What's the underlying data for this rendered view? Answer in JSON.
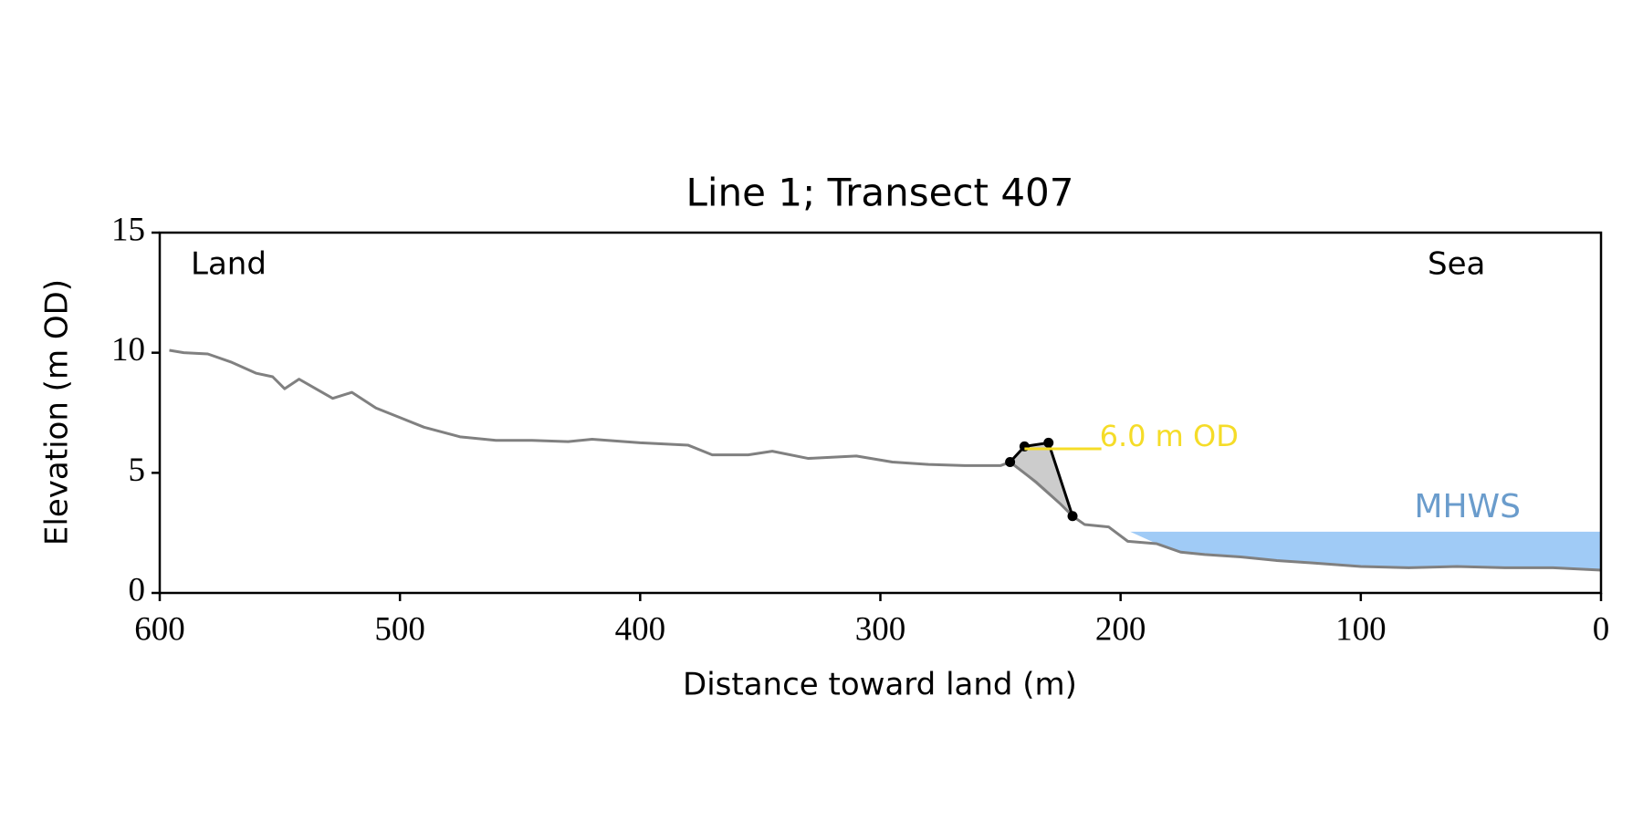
{
  "chart_data": {
    "type": "line",
    "title": "Line 1; Transect 407",
    "xlabel": "Distance toward land (m)",
    "ylabel": "Elevation (m OD)",
    "xlim": [
      600,
      0
    ],
    "ylim": [
      0,
      15
    ],
    "xticks": [
      600,
      500,
      400,
      300,
      200,
      100,
      0
    ],
    "yticks": [
      0,
      5,
      10,
      15
    ],
    "annotations": {
      "land": "Land",
      "sea": "Sea"
    },
    "series": [
      {
        "color": "#808080",
        "x": [
          596,
          590,
          580,
          570,
          560,
          553,
          548,
          542,
          535,
          528,
          520,
          510,
          500,
          490,
          475,
          460,
          445,
          430,
          420,
          400,
          380,
          370,
          355,
          345,
          330,
          310,
          295,
          280,
          265,
          250,
          246,
          235,
          225,
          220,
          215,
          205,
          197,
          185,
          175,
          165,
          150,
          135,
          120,
          100,
          80,
          60,
          40,
          20,
          0
        ],
        "values": [
          10.1,
          10.0,
          9.95,
          9.6,
          9.15,
          9.0,
          8.5,
          8.9,
          8.5,
          8.1,
          8.35,
          7.7,
          7.3,
          6.9,
          6.5,
          6.35,
          6.35,
          6.3,
          6.4,
          6.25,
          6.15,
          5.75,
          5.75,
          5.9,
          5.6,
          5.7,
          5.45,
          5.35,
          5.3,
          5.3,
          5.45,
          4.6,
          3.7,
          3.2,
          2.85,
          2.75,
          2.15,
          2.05,
          1.7,
          1.6,
          1.5,
          1.35,
          1.25,
          1.1,
          1.05,
          1.1,
          1.05,
          1.05,
          0.95
        ]
      },
      {
        "color": "#000000",
        "markers": true,
        "x": [
          246,
          240,
          230,
          220
        ],
        "values": [
          5.45,
          6.1,
          6.25,
          3.2
        ]
      }
    ],
    "dune_fill": "#cccccc",
    "od_line": {
      "label": "6.0 m OD",
      "value": 6.0,
      "x": [
        240,
        208
      ],
      "color": "#f5dc28"
    },
    "mhws": {
      "label": "MHWS",
      "value": 2.55,
      "x_start": 196,
      "color": "#a0cbf6",
      "label_color": "#6a9ccc"
    }
  }
}
